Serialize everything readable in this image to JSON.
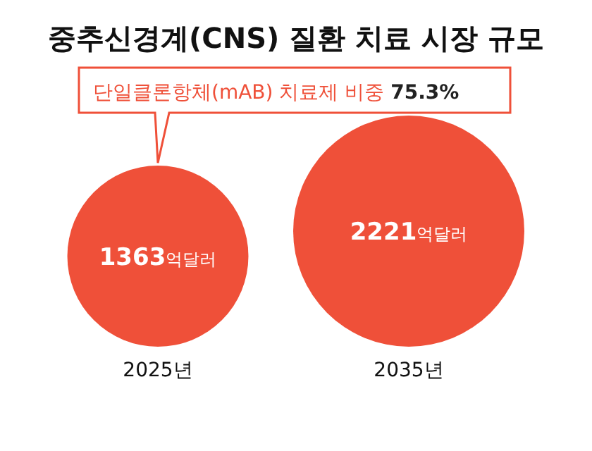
{
  "chart_data": {
    "type": "other",
    "title": "중추신경계(CNS) 질환 치료 시장 규모",
    "categories": [
      "2025년",
      "2035년"
    ],
    "values": [
      1363,
      2221
    ],
    "value_labels": [
      "**1363**억달러",
      "**2221**억달러"
    ],
    "color": "#ef5039",
    "annotations": [
      "단일클론항체(mAB) 치료제 비중 **75.3%**"
    ]
  }
}
